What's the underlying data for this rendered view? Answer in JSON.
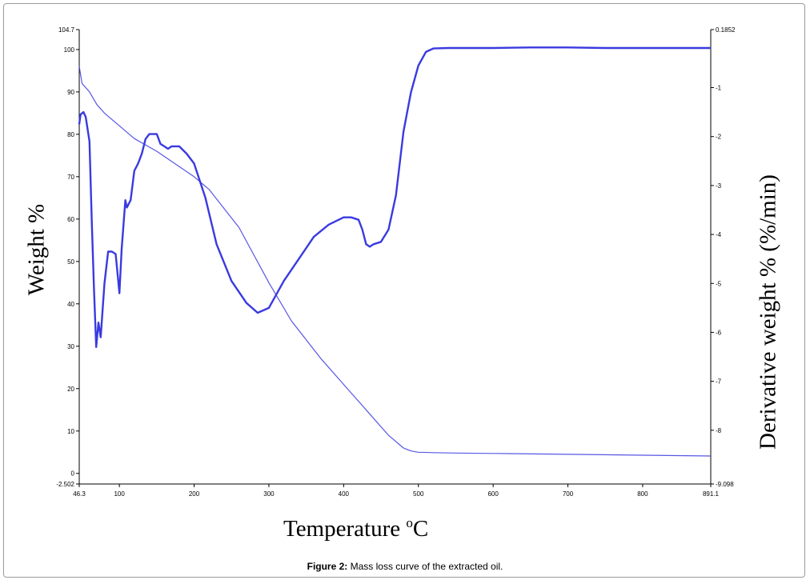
{
  "figure": {
    "caption_label": "Figure 2:",
    "caption_text": " Mass loss curve of the extracted oil."
  },
  "chart_data": {
    "type": "line",
    "xlabel": "Temperature",
    "xlabel_unit": "o",
    "xlabel_suffix": "C",
    "ylabel_left": "Weight %",
    "ylabel_right": "Derivative  weight % (%/min)",
    "xlim": [
      46.3,
      891.1
    ],
    "ylim_left": [
      -2.502,
      104.7
    ],
    "ylim_right": [
      -9.098,
      0.1852
    ],
    "x_ticks": [
      "46.3",
      "100",
      "200",
      "300",
      "400",
      "500",
      "600",
      "700",
      "800",
      "891.1"
    ],
    "x_tick_values": [
      46.3,
      100,
      200,
      300,
      400,
      500,
      600,
      700,
      800,
      891.1
    ],
    "y_left_ticks": [
      "104.7",
      "100",
      "90",
      "80",
      "70",
      "60",
      "50",
      "40",
      "30",
      "20",
      "10",
      "0",
      "-2.502"
    ],
    "y_left_tick_values": [
      104.7,
      100,
      90,
      80,
      70,
      60,
      50,
      40,
      30,
      20,
      10,
      0,
      -2.502
    ],
    "y_right_ticks": [
      "0.1852",
      "-1",
      "-2",
      "-3",
      "-4",
      "-5",
      "-6",
      "-7",
      "-8",
      "-9.098"
    ],
    "y_right_tick_values": [
      0.1852,
      -1,
      -2,
      -3,
      -4,
      -5,
      -6,
      -7,
      -8,
      -9.098
    ],
    "grid": false,
    "line_color": "#3a3ae0",
    "series": [
      {
        "axis": "left",
        "x": [
          46.3,
          50,
          60,
          70,
          80,
          100,
          120,
          150,
          200,
          220,
          260,
          300,
          330,
          370,
          400,
          430,
          460,
          480,
          490,
          500,
          520,
          550,
          600,
          700,
          800,
          891.1
        ],
        "values": [
          96,
          92,
          90,
          87,
          85,
          82,
          79,
          76,
          70,
          67,
          58,
          45,
          36,
          27,
          21,
          15,
          9,
          6,
          5.3,
          5,
          4.9,
          4.8,
          4.7,
          4.5,
          4.3,
          4.1
        ]
      },
      {
        "axis": "right",
        "x": [
          46.3,
          48,
          52,
          55,
          60,
          63,
          66,
          69,
          72,
          75,
          80,
          85,
          90,
          95,
          100,
          103,
          108,
          110,
          115,
          120,
          125,
          130,
          135,
          140,
          145,
          150,
          155,
          160,
          165,
          170,
          180,
          190,
          200,
          215,
          230,
          250,
          270,
          285,
          300,
          320,
          340,
          360,
          380,
          400,
          410,
          420,
          425,
          430,
          435,
          440,
          450,
          460,
          470,
          480,
          490,
          500,
          510,
          520,
          540,
          560,
          600,
          650,
          700,
          750,
          800,
          850,
          891.1
        ],
        "values": [
          -1.75,
          -1.55,
          -1.5,
          -1.6,
          -2.1,
          -3.7,
          -5.1,
          -6.3,
          -5.8,
          -6.1,
          -5,
          -4.35,
          -4.35,
          -4.4,
          -5.2,
          -4.3,
          -3.3,
          -3.45,
          -3.3,
          -2.7,
          -2.55,
          -2.35,
          -2.05,
          -1.95,
          -1.95,
          -1.95,
          -2.15,
          -2.2,
          -2.25,
          -2.2,
          -2.2,
          -2.35,
          -2.55,
          -3.25,
          -4.2,
          -4.95,
          -5.4,
          -5.6,
          -5.5,
          -4.95,
          -4.5,
          -4.05,
          -3.8,
          -3.65,
          -3.65,
          -3.7,
          -3.9,
          -4.2,
          -4.25,
          -4.2,
          -4.15,
          -3.9,
          -3.2,
          -1.9,
          -1.1,
          -0.55,
          -0.27,
          -0.2,
          -0.19,
          -0.19,
          -0.19,
          -0.18,
          -0.18,
          -0.19,
          -0.19,
          -0.19,
          -0.19
        ]
      }
    ]
  }
}
